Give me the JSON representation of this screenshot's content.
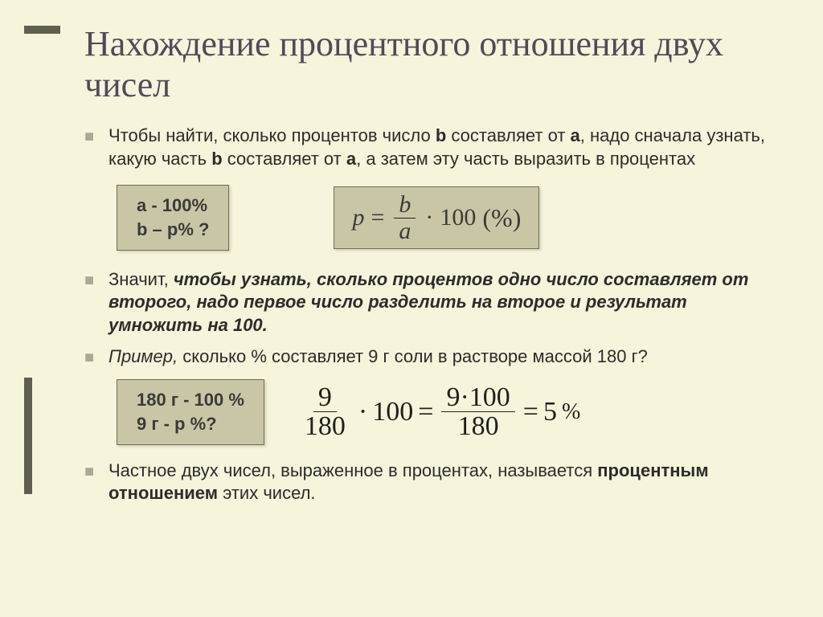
{
  "slide": {
    "background_color": "#f6f4da",
    "accent_color": "#5e5f4f",
    "title": "Нахождение процентного отношения двух чисел",
    "title_color": "#4f4a5a",
    "title_fontsize": 44,
    "bullet_marker_color": "#a9a99a",
    "body_fontsize": 22
  },
  "bullets": {
    "b1_pre": "Чтобы найти, сколько процентов число ",
    "b1_b": "b",
    "b1_mid1": " составляет от ",
    "b1_a": "а",
    "b1_mid2": ", надо сначала узнать, какую часть ",
    "b1_b2": "b",
    "b1_mid3": " составляет от ",
    "b1_a2": "а",
    "b1_end": ", а затем эту часть выразить в процентах",
    "b2_pre": "Значит, ",
    "b2_bold": "чтобы узнать, сколько процентов одно число составляет от второго, надо первое число разделить на второе и результат умножить на 100.",
    "b3_pre_i": "Пример,",
    "b3_rest": " сколько %  составляет 9 г соли в растворе массой 180 г?",
    "b4_pre": "Частное двух чисел, выраженное в процентах, называется ",
    "b4_bold": "процентным отношением",
    "b4_end": " этих чисел."
  },
  "box1": {
    "line1": "a -  100%",
    "line2": "b – p% ?",
    "bg": "#c9c6a5",
    "border": "#6f6f5a"
  },
  "formula": {
    "p": "p",
    "eq": "=",
    "num": "b",
    "den": "a",
    "dot": "·",
    "hundred": "100",
    "tail": "(%)"
  },
  "box2": {
    "line1": "180 г - 100 %",
    "line2": "9 г - p %?",
    "bg": "#c9c6a5",
    "border": "#6f6f5a"
  },
  "equation": {
    "f1_num": "9",
    "f1_den": "180",
    "dot": "·",
    "h": "100",
    "eq": "=",
    "f2_num": "9·100",
    "f2_den": "180",
    "res": "5",
    "pct": "%"
  }
}
